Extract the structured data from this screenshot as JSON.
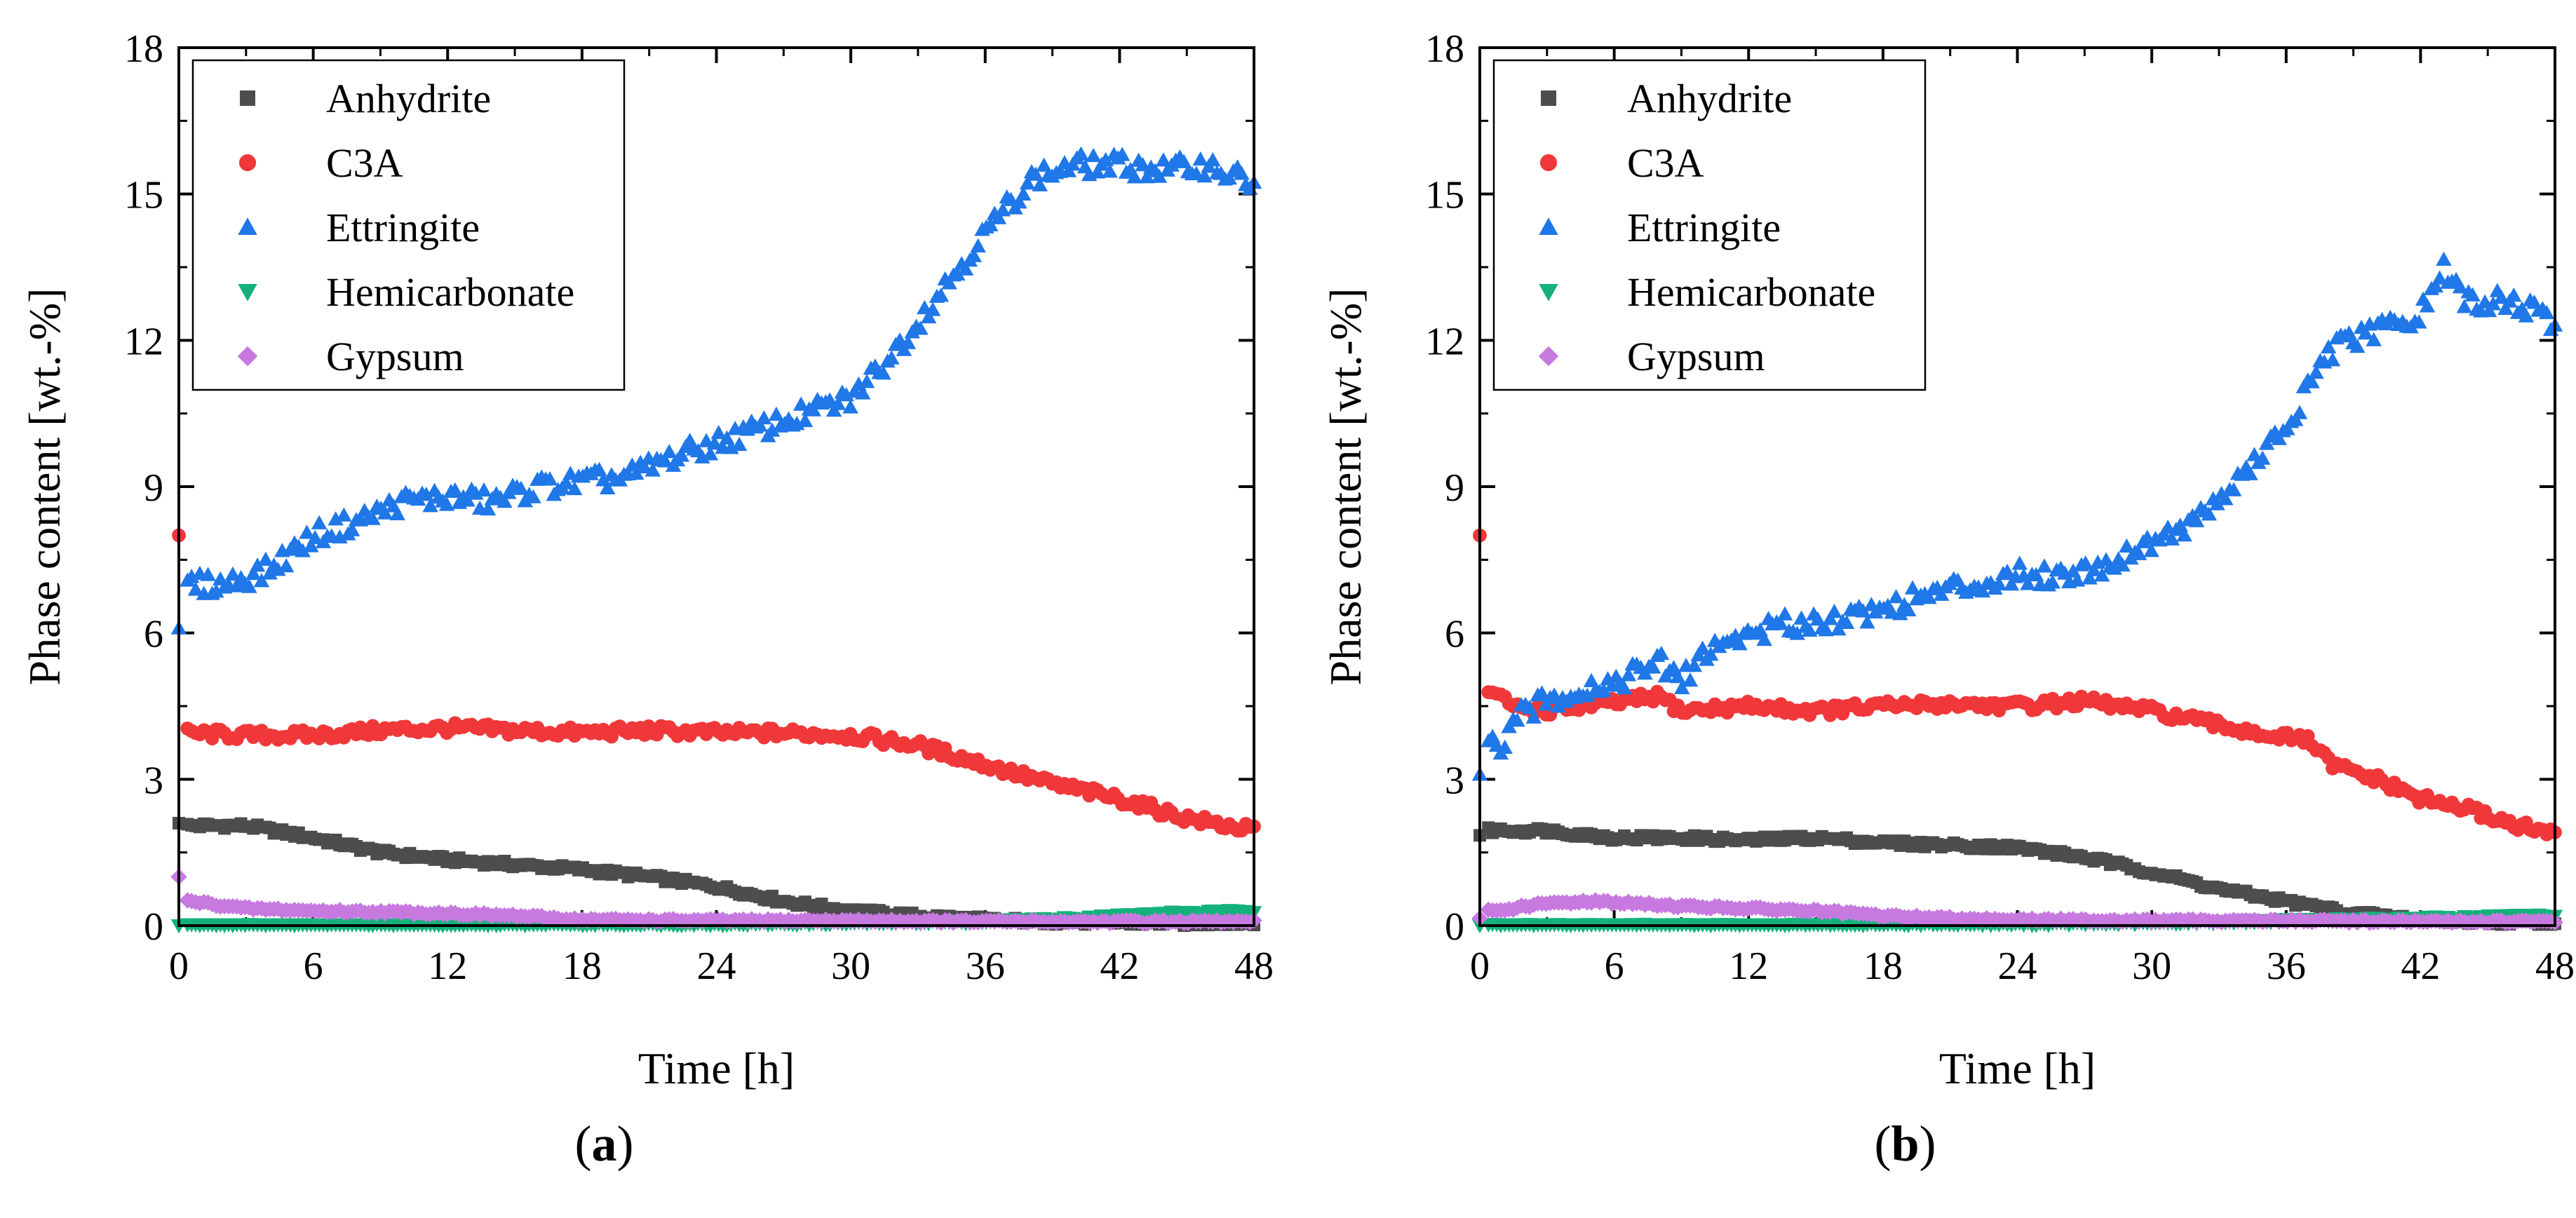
{
  "chart_data": [
    {
      "type": "scatter",
      "panel_label": "a",
      "xlabel": "Time [h]",
      "ylabel": "Phase content [wt.-%]",
      "xlim": [
        0,
        48
      ],
      "ylim": [
        0,
        18
      ],
      "xticks": [
        "0",
        "6",
        "12",
        "18",
        "24",
        "30",
        "36",
        "42",
        "48"
      ],
      "yticks": [
        "0",
        "3",
        "6",
        "9",
        "12",
        "15",
        "18"
      ],
      "legend_position": "top-left",
      "series": [
        {
          "name": "Anhydrite",
          "color": "#4d4d4d",
          "marker": "square",
          "x": [
            0,
            3,
            6,
            9,
            12,
            15,
            18,
            21,
            24,
            27,
            30,
            33,
            36,
            39,
            42,
            45,
            48
          ],
          "y": [
            2.1,
            2.05,
            1.8,
            1.5,
            1.35,
            1.25,
            1.15,
            1.0,
            0.8,
            0.5,
            0.3,
            0.2,
            0.12,
            0.08,
            0.06,
            0.05,
            0.05
          ]
        },
        {
          "name": "C3A",
          "color": "#f0383a",
          "marker": "circle",
          "x": [
            0,
            0.2,
            3,
            6,
            9,
            12,
            15,
            18,
            21,
            24,
            27,
            30,
            33,
            36,
            39,
            42,
            45,
            48
          ],
          "y": [
            8.0,
            3.95,
            3.9,
            3.9,
            4.0,
            4.05,
            4.0,
            3.95,
            4.0,
            3.95,
            3.95,
            3.9,
            3.7,
            3.3,
            2.9,
            2.6,
            2.2,
            1.95
          ]
        },
        {
          "name": "Ettringite",
          "color": "#1f77e8",
          "marker": "triangle-up",
          "x": [
            0,
            2,
            4,
            6,
            8,
            10,
            12,
            14,
            16,
            18,
            20,
            22,
            24,
            26,
            28,
            30,
            32,
            34,
            36,
            38,
            40,
            42,
            44,
            46,
            48
          ],
          "y": [
            6.1,
            7.0,
            7.3,
            8.0,
            8.3,
            8.7,
            8.8,
            8.7,
            9.0,
            9.1,
            9.2,
            9.6,
            9.9,
            10.2,
            10.5,
            10.8,
            11.8,
            13.0,
            14.2,
            15.3,
            15.6,
            15.6,
            15.5,
            15.6,
            15.2
          ]
        },
        {
          "name": "Hemicarbonate",
          "color": "#14b27a",
          "marker": "triangle-down",
          "x": [
            0,
            6,
            12,
            18,
            24,
            30,
            36,
            40,
            44,
            48
          ],
          "y": [
            0.0,
            0.0,
            0.0,
            0.02,
            0.03,
            0.05,
            0.08,
            0.15,
            0.25,
            0.3
          ]
        },
        {
          "name": "Gypsum",
          "color": "#c779e0",
          "marker": "diamond",
          "x": [
            0,
            0.5,
            3,
            6,
            9,
            12,
            15,
            18,
            24,
            30,
            36,
            42,
            48
          ],
          "y": [
            1.0,
            0.5,
            0.35,
            0.3,
            0.28,
            0.25,
            0.2,
            0.12,
            0.1,
            0.1,
            0.08,
            0.08,
            0.08
          ]
        }
      ]
    },
    {
      "type": "scatter",
      "panel_label": "b",
      "xlabel": "Time [h]",
      "ylabel": "Phase content [wt.-%]",
      "xlim": [
        0,
        48
      ],
      "ylim": [
        0,
        18
      ],
      "xticks": [
        "0",
        "6",
        "12",
        "18",
        "24",
        "30",
        "36",
        "42",
        "48"
      ],
      "yticks": [
        "0",
        "3",
        "6",
        "9",
        "12",
        "15",
        "18"
      ],
      "legend_position": "top-left",
      "series": [
        {
          "name": "Anhydrite",
          "color": "#4d4d4d",
          "marker": "square",
          "x": [
            0,
            3,
            6,
            9,
            12,
            15,
            18,
            21,
            24,
            27,
            30,
            33,
            36,
            39,
            42,
            45,
            48
          ],
          "y": [
            1.85,
            1.95,
            1.8,
            1.8,
            1.75,
            1.8,
            1.7,
            1.65,
            1.6,
            1.4,
            1.1,
            0.75,
            0.5,
            0.25,
            0.12,
            0.08,
            0.08
          ]
        },
        {
          "name": "C3A",
          "color": "#f0383a",
          "marker": "circle",
          "x": [
            0,
            0.3,
            1.5,
            3,
            5,
            8,
            9,
            12,
            15,
            18,
            21,
            24,
            27,
            30,
            33,
            36,
            37,
            38,
            40,
            42,
            44,
            46,
            48
          ],
          "y": [
            8.0,
            4.85,
            4.5,
            4.4,
            4.5,
            4.7,
            4.4,
            4.5,
            4.4,
            4.5,
            4.55,
            4.5,
            4.6,
            4.4,
            4.1,
            3.85,
            3.8,
            3.3,
            3.0,
            2.6,
            2.4,
            2.1,
            1.85
          ]
        },
        {
          "name": "Ettringite",
          "color": "#1f77e8",
          "marker": "triangle-up",
          "x": [
            0,
            1,
            2,
            4,
            6,
            8,
            9,
            10,
            12,
            14,
            16,
            18,
            20,
            22,
            24,
            26,
            28,
            30,
            32,
            34,
            36,
            37,
            38,
            40,
            42,
            43,
            44,
            46,
            48
          ],
          "y": [
            3.1,
            3.7,
            4.4,
            4.8,
            5.0,
            5.4,
            5.0,
            5.6,
            6.0,
            6.2,
            6.3,
            6.5,
            6.8,
            7.0,
            7.2,
            7.2,
            7.4,
            7.9,
            8.3,
            9.2,
            10.2,
            11.0,
            11.8,
            12.2,
            12.5,
            13.5,
            12.8,
            12.8,
            12.4
          ]
        },
        {
          "name": "Hemicarbonate",
          "color": "#14b27a",
          "marker": "triangle-down",
          "x": [
            0,
            6,
            12,
            18,
            24,
            30,
            36,
            42,
            48
          ],
          "y": [
            0.0,
            0.0,
            0.0,
            0.02,
            0.03,
            0.05,
            0.1,
            0.15,
            0.2
          ]
        },
        {
          "name": "Gypsum",
          "color": "#c779e0",
          "marker": "diamond",
          "x": [
            0,
            1,
            2,
            3,
            5,
            7,
            9,
            12,
            15,
            18,
            21,
            24,
            30,
            36,
            42,
            48
          ],
          "y": [
            0.15,
            0.3,
            0.4,
            0.45,
            0.5,
            0.45,
            0.4,
            0.35,
            0.3,
            0.2,
            0.15,
            0.12,
            0.1,
            0.1,
            0.08,
            0.08
          ]
        }
      ]
    }
  ]
}
